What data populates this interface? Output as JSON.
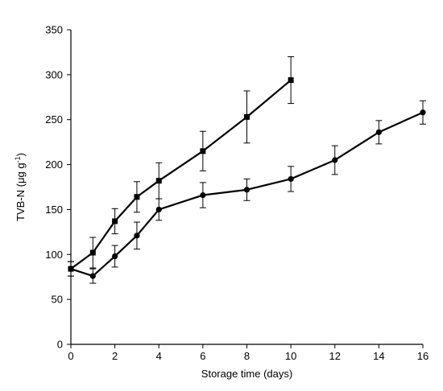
{
  "chart_data": {
    "type": "line",
    "xlabel": "Storage time (days)",
    "ylabel": {
      "base": "TVB-N (μg g",
      "sup": "-1",
      "close": ")"
    },
    "xlim": [
      0,
      16
    ],
    "ylim": [
      0,
      350
    ],
    "x_ticks": [
      0,
      2,
      4,
      6,
      8,
      10,
      12,
      14,
      16
    ],
    "y_ticks": [
      0,
      50,
      100,
      150,
      200,
      250,
      300,
      350
    ],
    "grid": false,
    "legend": "none",
    "series": [
      {
        "marker": "square",
        "x": [
          0,
          1,
          2,
          3,
          4,
          6,
          8,
          10
        ],
        "y": [
          84,
          102,
          137,
          164,
          182,
          215,
          253,
          294
        ],
        "err": [
          8,
          17,
          14,
          17,
          20,
          22,
          29,
          26
        ]
      },
      {
        "marker": "circle",
        "x": [
          0,
          1,
          2,
          3,
          4,
          6,
          8,
          10,
          12,
          14,
          16
        ],
        "y": [
          84,
          76,
          98,
          121,
          150,
          166,
          172,
          184,
          205,
          236,
          258
        ],
        "err": [
          8,
          8,
          12,
          15,
          12,
          14,
          12,
          14,
          16,
          13,
          13
        ]
      }
    ],
    "colors": {
      "line": "#000000",
      "axis": "#000000"
    }
  }
}
